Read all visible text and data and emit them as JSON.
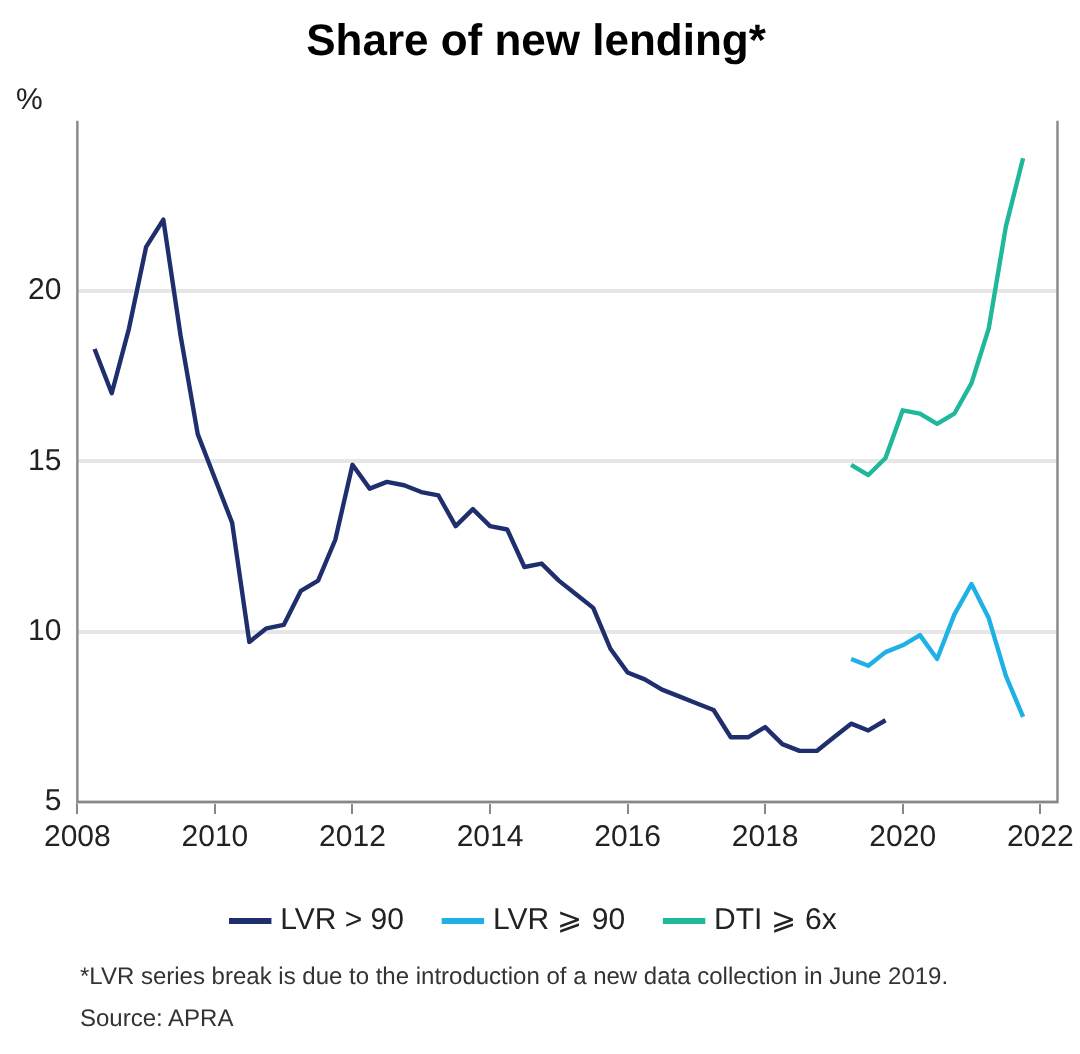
{
  "chart_data": {
    "type": "line",
    "title": "Share of new lending*",
    "ylabel": "%",
    "xlim": [
      2008,
      2022.25
    ],
    "xticks": [
      2008,
      2010,
      2012,
      2014,
      2016,
      2018,
      2020,
      2022
    ],
    "ylim": [
      5,
      25
    ],
    "yticks": [
      5,
      10,
      15,
      20
    ],
    "grid": "y",
    "legend": "bottom",
    "marker": "none",
    "line_style": "solid",
    "series": [
      {
        "name": "LVR > 90",
        "color": "#1f2f6e",
        "x": [
          2008.25,
          2008.5,
          2008.75,
          2009,
          2009.25,
          2009.5,
          2009.75,
          2010,
          2010.25,
          2010.5,
          2010.75,
          2011,
          2011.25,
          2011.5,
          2011.75,
          2012,
          2012.25,
          2012.5,
          2012.75,
          2013,
          2013.25,
          2013.5,
          2013.75,
          2014,
          2014.25,
          2014.5,
          2014.75,
          2015,
          2015.25,
          2015.5,
          2015.75,
          2016,
          2016.25,
          2016.5,
          2016.75,
          2017,
          2017.25,
          2017.5,
          2017.75,
          2018,
          2018.25,
          2018.5,
          2018.75,
          2019,
          2019.25,
          2019.5,
          2019.75
        ],
        "values": [
          18.3,
          17.0,
          18.9,
          21.3,
          22.1,
          18.7,
          15.8,
          14.5,
          13.2,
          9.7,
          10.1,
          10.2,
          11.2,
          11.5,
          12.7,
          14.9,
          14.2,
          14.4,
          14.3,
          14.1,
          14.0,
          13.1,
          13.6,
          13.1,
          13.0,
          11.9,
          12.0,
          11.5,
          11.1,
          10.7,
          9.5,
          8.8,
          8.6,
          8.3,
          8.1,
          7.9,
          7.7,
          6.9,
          6.9,
          7.2,
          6.7,
          6.5,
          6.5,
          6.9,
          7.3,
          7.1,
          7.4
        ]
      },
      {
        "name": "LVR ⩾ 90",
        "color": "#1fb1e6",
        "x": [
          2019.25,
          2019.5,
          2019.75,
          2020,
          2020.25,
          2020.5,
          2020.75,
          2021,
          2021.25,
          2021.5,
          2021.75
        ],
        "values": [
          9.2,
          9.0,
          9.4,
          9.6,
          9.9,
          9.2,
          10.5,
          11.4,
          10.4,
          8.7,
          7.5
        ]
      },
      {
        "name": "DTI ⩾ 6x",
        "color": "#1fb89a",
        "x": [
          2019.25,
          2019.5,
          2019.75,
          2020,
          2020.25,
          2020.5,
          2020.75,
          2021,
          2021.25,
          2021.5,
          2021.75
        ],
        "values": [
          14.9,
          14.6,
          15.1,
          16.5,
          16.4,
          16.1,
          16.4,
          17.3,
          18.9,
          21.9,
          23.9
        ]
      }
    ],
    "annotations": [
      "*LVR series break is due to the introduction of a new data collection in June 2019.",
      "Source: APRA"
    ]
  }
}
